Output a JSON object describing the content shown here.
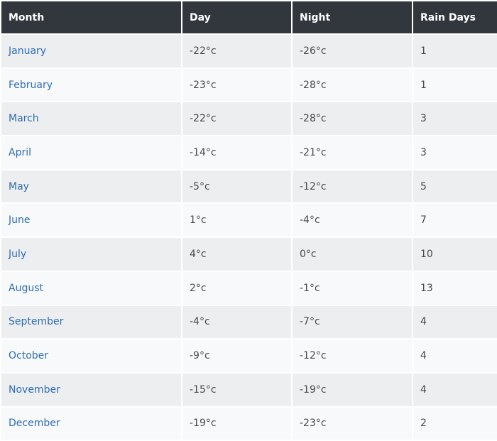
{
  "table": {
    "headers": {
      "month": "Month",
      "day": "Day",
      "night": "Night",
      "rain_days": "Rain Days"
    },
    "rows": [
      {
        "month": "January",
        "day": "-22°c",
        "night": "-26°c",
        "rain_days": "1"
      },
      {
        "month": "February",
        "day": "-23°c",
        "night": "-28°c",
        "rain_days": "1"
      },
      {
        "month": "March",
        "day": "-22°c",
        "night": "-28°c",
        "rain_days": "3"
      },
      {
        "month": "April",
        "day": "-14°c",
        "night": "-21°c",
        "rain_days": "3"
      },
      {
        "month": "May",
        "day": "-5°c",
        "night": "-12°c",
        "rain_days": "5"
      },
      {
        "month": "June",
        "day": "1°c",
        "night": "-4°c",
        "rain_days": "7"
      },
      {
        "month": "July",
        "day": "4°c",
        "night": "0°c",
        "rain_days": "10"
      },
      {
        "month": "August",
        "day": "2°c",
        "night": "-1°c",
        "rain_days": "13"
      },
      {
        "month": "September",
        "day": "-4°c",
        "night": "-7°c",
        "rain_days": "4"
      },
      {
        "month": "October",
        "day": "-9°c",
        "night": "-12°c",
        "rain_days": "4"
      },
      {
        "month": "November",
        "day": "-15°c",
        "night": "-19°c",
        "rain_days": "4"
      },
      {
        "month": "December",
        "day": "-19°c",
        "night": "-23°c",
        "rain_days": "2"
      }
    ]
  },
  "colors": {
    "header_background": "#32373e",
    "header_text": "#ffffff",
    "month_link": "#2f6db3",
    "row_odd": "#eceef0",
    "row_even": "#f7f9fa"
  }
}
